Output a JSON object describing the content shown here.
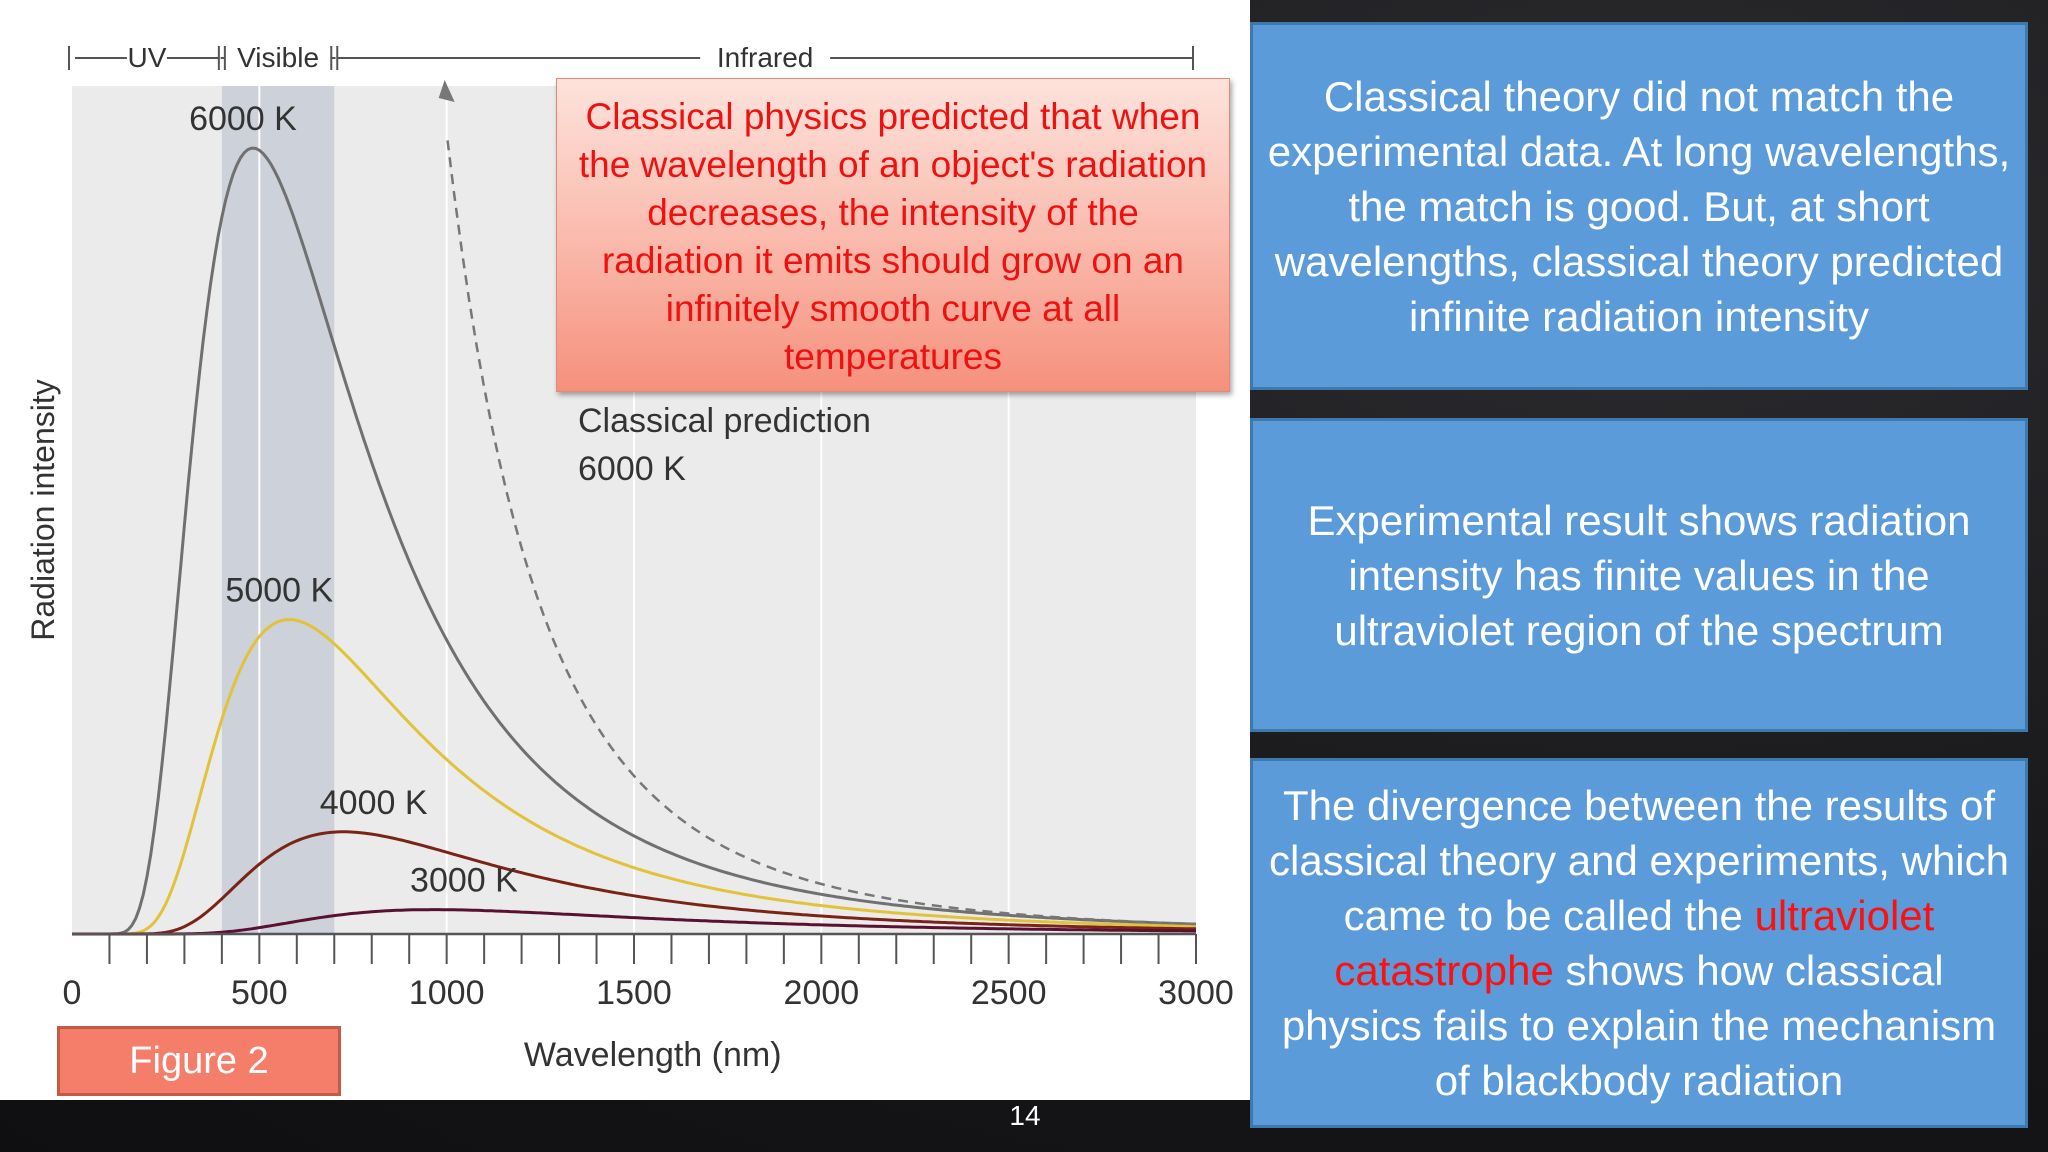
{
  "slide": {
    "page_number": "14",
    "figure_label": "Figure 2",
    "callout_text": "Classical physics predicted that when the wavelength of an object's radiation decreases, the intensity of the radiation it emits should grow on an infinitely smooth curve at all temperatures",
    "boxes": [
      {
        "text": "Classical theory did not match the experimental data. At long wavelengths, the match is good. But, at short wavelengths, classical theory predicted infinite radiation intensity"
      },
      {
        "text": "Experimental result shows radiation intensity has finite values in the ultraviolet region of the spectrum"
      },
      {
        "text_before": "The divergence between the results of classical theory and experiments, which came to be called the ",
        "highlight": "ultraviolet catastrophe",
        "text_after": " shows how classical physics fails to explain the mechanism of blackbody radiation",
        "highlight_color": "#ff1010"
      }
    ],
    "colors": {
      "box_fill": "#5b9bd9",
      "callout_text": "#ee1111",
      "figure_label_fill": "#f47e6a"
    }
  },
  "chart_data": {
    "type": "line",
    "xlabel": "Wavelength  (nm)",
    "ylabel": "Radiation  intensity",
    "xlim": [
      0,
      3000
    ],
    "ylim": [
      0,
      1.12
    ],
    "x_ticks": [
      0,
      500,
      1000,
      1500,
      2000,
      2500,
      3000
    ],
    "x_tick_labels": [
      "0",
      "500",
      "1000",
      "1500",
      "2000",
      "2500",
      "3000"
    ],
    "minor_tick_step": 100,
    "regions": [
      {
        "name": "UV",
        "from": 0,
        "to": 400
      },
      {
        "name": "Visible",
        "from": 400,
        "to": 700
      },
      {
        "name": "Infrared",
        "from": 700,
        "to": 3000
      }
    ],
    "visible_band": [
      400,
      700
    ],
    "series": [
      {
        "name": "6000 K",
        "temperature": 6000,
        "peak_wavelength": 483,
        "peak_intensity": 1.0,
        "color": "#707070",
        "style": "solid"
      },
      {
        "name": "5000 K",
        "temperature": 5000,
        "peak_wavelength": 580,
        "peak_intensity": 0.4,
        "color": "#e2c23a",
        "style": "solid"
      },
      {
        "name": "4000 K",
        "temperature": 4000,
        "peak_wavelength": 725,
        "peak_intensity": 0.13,
        "color": "#7a2418",
        "style": "solid"
      },
      {
        "name": "3000 K",
        "temperature": 3000,
        "peak_wavelength": 966,
        "peak_intensity": 0.031,
        "color": "#5a1030",
        "style": "solid"
      },
      {
        "name": "Classical prediction 6000 K",
        "label_line1": "Classical prediction",
        "label_line2": "6000 K",
        "temperature": 6000,
        "color": "#777777",
        "style": "dashed"
      }
    ]
  }
}
